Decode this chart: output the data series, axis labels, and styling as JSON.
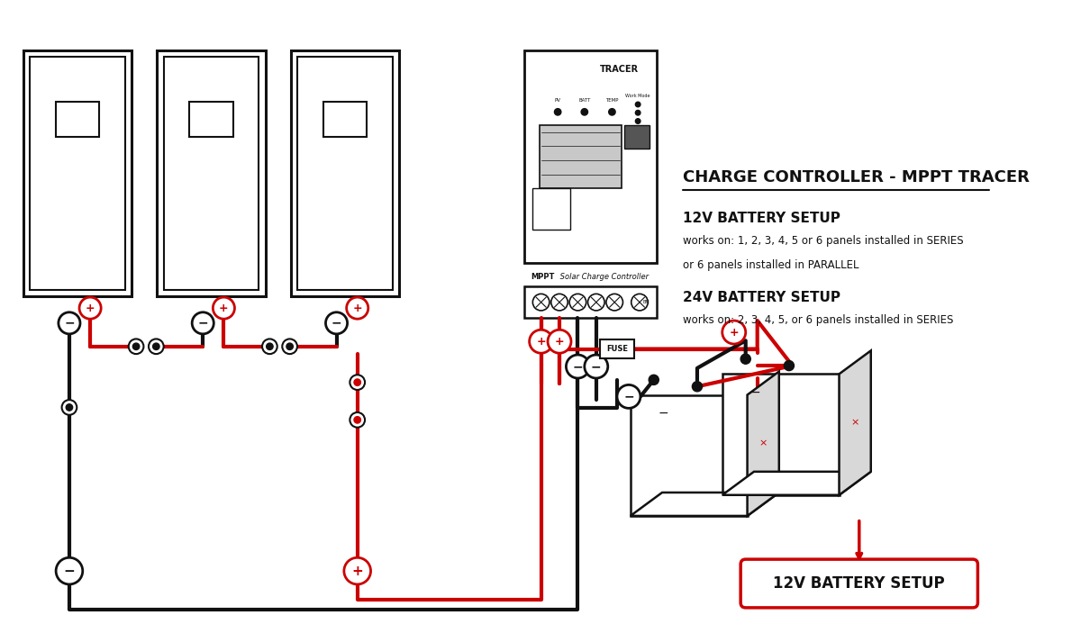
{
  "bg_color": "#ffffff",
  "RED": "#cc0000",
  "BLK": "#111111",
  "LW": 3.0,
  "title": "CHARGE CONTROLLER - MPPT TRACER",
  "text1_bold": "12V BATTERY SETUP",
  "text1a": "works on: 1, 2, 3, 4, 5 or 6 panels installed in SERIES",
  "text2": "or 6 panels installed in PARALLEL",
  "text3_bold": "24V BATTERY SETUP",
  "text3a": "works on: 2, 3, 4, 5, or 6 panels installed in SERIES",
  "label_12v": "12V BATTERY SETUP",
  "label_fuse": "FUSE",
  "label_mppt": "Solar Charge Controller",
  "label_mppt_bold": "MPPT",
  "label_tracer": "TRACER"
}
